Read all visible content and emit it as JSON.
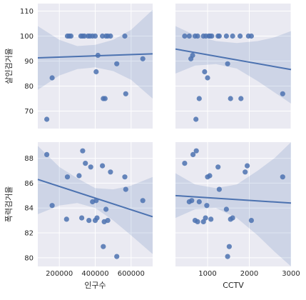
{
  "chart_data": [
    {
      "type": "scatter",
      "row": 0,
      "col": 0,
      "xlabel": "",
      "ylabel": "살인검거율",
      "xlim": [
        80000,
        720000
      ],
      "ylim": [
        63,
        113
      ],
      "xticks": [],
      "yticks": [
        70,
        80,
        90,
        100,
        110
      ],
      "x": [
        130000,
        160000,
        245000,
        255000,
        265000,
        320000,
        330000,
        340000,
        360000,
        370000,
        385000,
        400000,
        405000,
        415000,
        440000,
        445000,
        455000,
        460000,
        470000,
        485000,
        520000,
        565000,
        570000,
        665000
      ],
      "y": [
        66.7,
        83.3,
        100,
        100,
        100,
        100,
        100,
        100,
        100,
        100,
        100,
        100,
        85.7,
        92.3,
        100,
        75,
        75,
        100,
        100,
        100,
        88.9,
        100,
        76.9,
        90.9
      ],
      "fit": {
        "x0": 80000,
        "y0": 91.3,
        "x1": 720000,
        "y1": 92.9
      },
      "ci": {
        "x": [
          80000,
          200000,
          300000,
          400000,
          500000,
          600000,
          720000
        ],
        "low": [
          78.5,
          84.2,
          86.8,
          87.5,
          86.0,
          82.5,
          75.0
        ],
        "high": [
          104.0,
          98.5,
          96.0,
          96.5,
          98.5,
          102.5,
          110.5
        ]
      }
    },
    {
      "type": "scatter",
      "row": 0,
      "col": 1,
      "xlabel": "",
      "ylabel": "",
      "xlim": [
        230,
        3000
      ],
      "ylim": [
        63,
        113
      ],
      "xticks": [],
      "yticks": [],
      "x": [
        450,
        560,
        600,
        640,
        700,
        720,
        760,
        800,
        900,
        930,
        960,
        1000,
        1030,
        1060,
        1100,
        1250,
        1280,
        1450,
        1480,
        1550,
        1600,
        1780,
        1800,
        1980,
        2050,
        2800
      ],
      "y": [
        100,
        100,
        90.9,
        92.3,
        100,
        66.7,
        100,
        75,
        100,
        85.7,
        100,
        83.3,
        100,
        100,
        100,
        100,
        100,
        100,
        88.9,
        75,
        100,
        100,
        75,
        100,
        100,
        76.9
      ],
      "fit": {
        "x0": 230,
        "y0": 94.8,
        "x1": 3000,
        "y1": 86.6
      },
      "ci": {
        "x": [
          230,
          700,
          1200,
          1700,
          2200,
          2600,
          3000
        ],
        "low": [
          85.0,
          88.2,
          88.8,
          87.0,
          82.0,
          77.5,
          73.0
        ],
        "high": [
          104.0,
          100.3,
          98.0,
          97.2,
          98.0,
          99.5,
          102.0
        ]
      }
    },
    {
      "type": "scatter",
      "row": 1,
      "col": 0,
      "xlabel": "인구수",
      "ylabel": "폭력검거율",
      "xlim": [
        80000,
        720000
      ],
      "ylim": [
        79.3,
        89.3
      ],
      "xticks": [
        200000,
        400000,
        600000
      ],
      "xticklabels": [
        "200000",
        "400000",
        "600000"
      ],
      "yticks": [
        80,
        82,
        84,
        86,
        88
      ],
      "x": [
        130000,
        160000,
        240000,
        245000,
        310000,
        325000,
        330000,
        345000,
        365000,
        375000,
        385000,
        400000,
        405000,
        410000,
        440000,
        445000,
        450000,
        460000,
        470000,
        485000,
        520000,
        565000,
        570000,
        665000
      ],
      "y": [
        88.3,
        84.2,
        83.1,
        86.5,
        86.6,
        83.2,
        88.6,
        87.6,
        83.0,
        87.3,
        84.5,
        83.0,
        84.6,
        83.2,
        87.4,
        80.9,
        82.9,
        83.9,
        83.0,
        86.9,
        80.1,
        86.5,
        85.5,
        84.6
      ],
      "fit": {
        "x0": 80000,
        "y0": 86.3,
        "x1": 720000,
        "y1": 83.3
      },
      "ci": {
        "x": [
          80000,
          200000,
          300000,
          400000,
          500000,
          600000,
          720000
        ],
        "low": [
          83.5,
          84.2,
          84.4,
          84.0,
          83.0,
          81.8,
          80.3
        ],
        "high": [
          89.0,
          87.3,
          86.4,
          85.6,
          85.5,
          85.8,
          86.5
        ]
      }
    },
    {
      "type": "scatter",
      "row": 1,
      "col": 1,
      "xlabel": "CCTV",
      "ylabel": "",
      "xlim": [
        230,
        3000
      ],
      "ylim": [
        79.3,
        89.3
      ],
      "xticks": [
        1000,
        2000,
        3000
      ],
      "xticklabels": [
        "1000",
        "2000",
        "3000"
      ],
      "yticks": [],
      "x": [
        450,
        560,
        620,
        650,
        700,
        730,
        760,
        800,
        900,
        950,
        980,
        1000,
        1050,
        1080,
        1250,
        1280,
        1450,
        1480,
        1520,
        1550,
        1600,
        1900,
        1950,
        2050,
        2800
      ],
      "y": [
        87.6,
        84.5,
        84.6,
        88.3,
        83.0,
        88.6,
        82.9,
        84.5,
        82.9,
        83.2,
        84.2,
        86.5,
        86.6,
        83.1,
        87.3,
        85.5,
        83.9,
        80.1,
        80.9,
        83.1,
        83.2,
        86.9,
        87.4,
        83.0,
        86.5
      ],
      "fit": {
        "x0": 230,
        "y0": 85.0,
        "x1": 3000,
        "y1": 84.4
      },
      "ci": {
        "x": [
          230,
          700,
          1200,
          1700,
          2200,
          2600,
          3000
        ],
        "low": [
          83.2,
          83.9,
          84.0,
          83.2,
          81.8,
          80.5,
          79.3
        ],
        "high": [
          86.8,
          85.9,
          85.6,
          85.9,
          87.0,
          88.0,
          89.3
        ]
      }
    }
  ]
}
